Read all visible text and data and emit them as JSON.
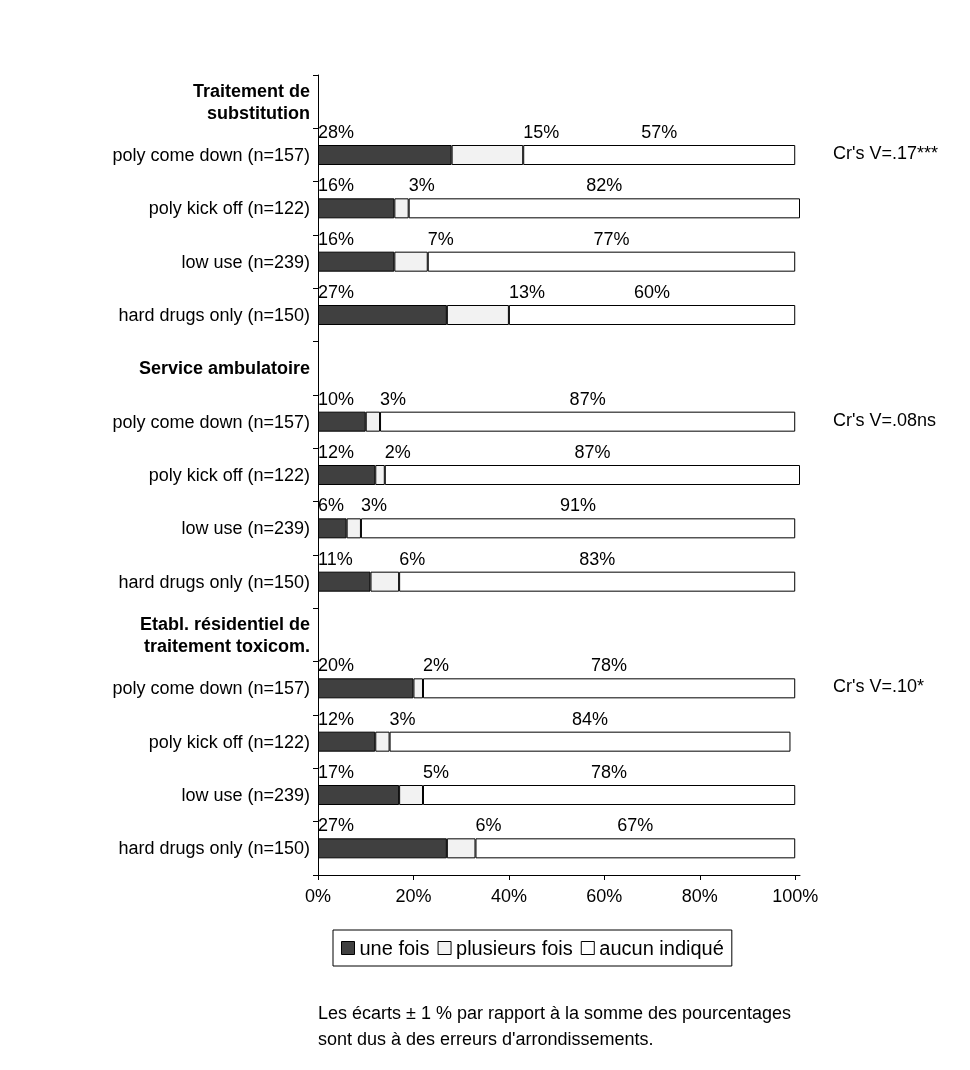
{
  "chart_data": {
    "type": "bar",
    "orientation": "horizontal",
    "stacked": true,
    "categories": [
      "Traitement de\nsubstitution",
      "poly come down (n=157)",
      "poly kick off (n=122)",
      "low use (n=239)",
      "hard drugs only (n=150)",
      "Service ambulatoire",
      "poly come down (n=157)",
      "poly kick off (n=122)",
      "low use (n=239)",
      "hard drugs only (n=150)",
      "Etabl. résidentiel de\ntraitement toxicom.",
      "poly come down (n=157)",
      "poly kick off (n=122)",
      "low use (n=239)",
      "hard drugs only (n=150)"
    ],
    "series": [
      {
        "name": "une fois",
        "color": "#404040",
        "values": [
          null,
          28,
          16,
          16,
          27,
          null,
          10,
          12,
          6,
          11,
          null,
          20,
          12,
          17,
          27
        ],
        "value_labels": [
          null,
          "28%",
          "16%",
          "16%",
          "27%",
          null,
          "10%",
          "12%",
          "6%",
          "11%",
          null,
          "20%",
          "12%",
          "17%",
          "27%"
        ]
      },
      {
        "name": "plusieurs fois",
        "color": "#f2f2f2",
        "values": [
          null,
          15,
          3,
          7,
          13,
          null,
          3,
          2,
          3,
          6,
          null,
          2,
          3,
          5,
          6
        ],
        "value_labels": [
          null,
          "15%",
          "3%",
          "7%",
          "13%",
          null,
          "3%",
          "2%",
          "3%",
          "6%",
          null,
          "2%",
          "3%",
          "5%",
          "6%"
        ]
      },
      {
        "name": "aucun indiqué",
        "color": "#ffffff",
        "values": [
          null,
          57,
          82,
          77,
          60,
          null,
          87,
          87,
          91,
          83,
          null,
          78,
          84,
          78,
          67
        ],
        "value_labels": [
          null,
          "57%",
          "82%",
          "77%",
          "60%",
          null,
          "87%",
          "87%",
          "91%",
          "83%",
          null,
          "78%",
          "84%",
          "78%",
          "67%"
        ]
      }
    ],
    "xlim": [
      0,
      101
    ],
    "xticks": [
      {
        "value": 0,
        "label": "0%"
      },
      {
        "value": 20,
        "label": "20%"
      },
      {
        "value": 40,
        "label": "40%"
      },
      {
        "value": 60,
        "label": "60%"
      },
      {
        "value": 80,
        "label": "80%"
      },
      {
        "value": 100,
        "label": "100%"
      }
    ],
    "grid": false,
    "legend": "bottom",
    "annotations": [
      "Cr's V=.17***",
      "Cr's V=.08ns",
      "Cr's V=.10*",
      "Les écarts ± 1 % par rapport à la somme des pourcentages\nsont dus à des erreurs d'arrondissements."
    ]
  }
}
